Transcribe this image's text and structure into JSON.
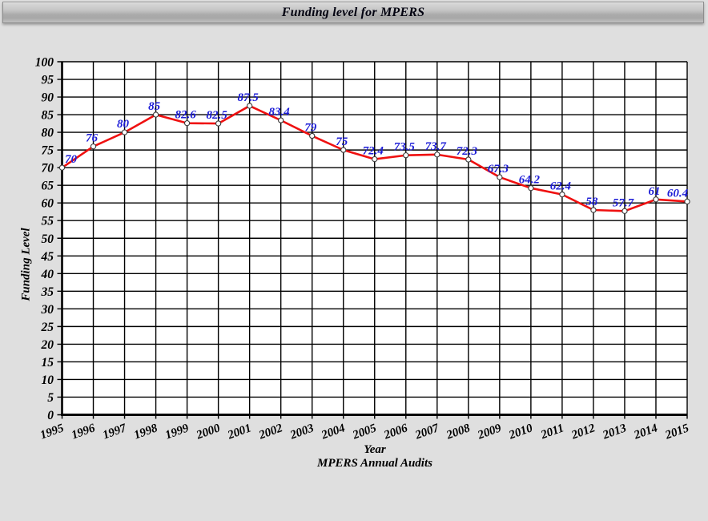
{
  "window": {
    "title": "Funding level for MPERS"
  },
  "chart_data": {
    "type": "line",
    "title": "Funding level for MPERS",
    "xlabel": "Year",
    "xlabel_sub": "MPERS Annual Audits",
    "ylabel": "Funding Level",
    "categories": [
      "1995",
      "1996",
      "1997",
      "1998",
      "1999",
      "2000",
      "2001",
      "2002",
      "2003",
      "2004",
      "2005",
      "2006",
      "2007",
      "2008",
      "2009",
      "2010",
      "2011",
      "2012",
      "2013",
      "2014",
      "2015"
    ],
    "values": [
      70,
      76,
      80,
      85,
      82.6,
      82.5,
      87.5,
      83.4,
      79,
      75,
      72.4,
      73.5,
      73.7,
      72.3,
      67.3,
      64.2,
      62.4,
      58,
      57.7,
      61,
      60.4
    ],
    "ylim": [
      0,
      100
    ],
    "ytick_step": 5,
    "grid": true,
    "legend_position": "none",
    "colors": {
      "line": "#ef1010",
      "marker_fill": "#ffffff",
      "marker_stroke": "#3a3a3a",
      "data_label": "#1c1cd6",
      "grid": "#000000",
      "axis": "#000000",
      "plot_bg": "#ffffff",
      "page_bg": "#dfdfdf",
      "title_text": "#020210"
    }
  }
}
